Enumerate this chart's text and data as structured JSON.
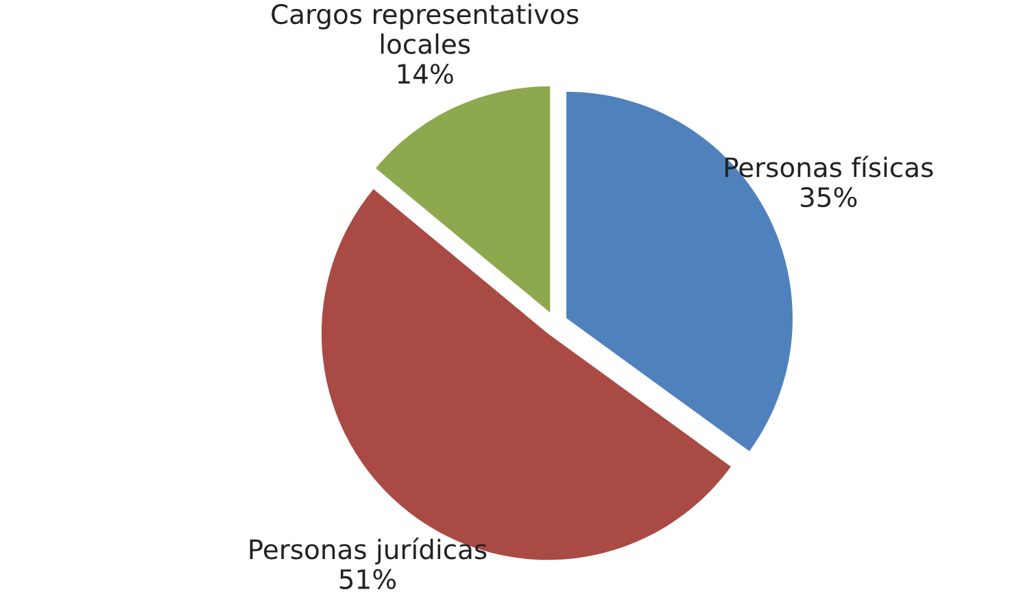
{
  "chart_data": {
    "type": "pie",
    "categories": [
      "Personas físicas",
      "Personas jurídicas",
      "Cargos representativos\nlocales"
    ],
    "values": [
      35,
      51,
      14
    ],
    "value_labels": [
      "35%",
      "51%",
      "14%"
    ],
    "colors": [
      "#4f81bd",
      "#aa4a44",
      "#8ea84e"
    ]
  }
}
